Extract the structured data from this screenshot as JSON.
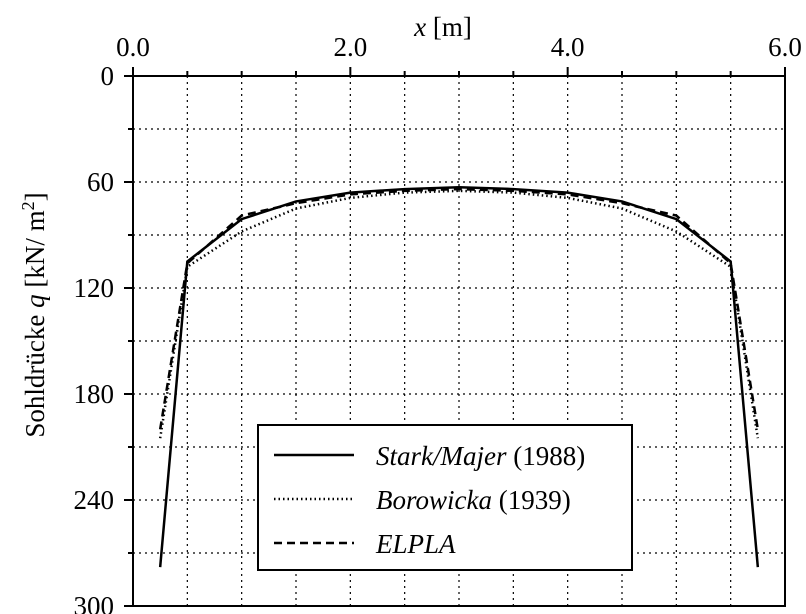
{
  "chart_data": {
    "type": "line",
    "xlabel": {
      "var": "x",
      "unit": " [m]"
    },
    "ylabel": {
      "prefix": "Sohldrücke ",
      "var": "q",
      "unit": " [kN/ m",
      "sup": "2",
      "close": "]"
    },
    "x_ticks": [
      "0.0",
      "2.0",
      "4.0",
      "6.0"
    ],
    "y_ticks": [
      "0",
      "60",
      "120",
      "180",
      "240",
      "300"
    ],
    "xlim": [
      0,
      6
    ],
    "ylim": [
      0,
      300
    ],
    "y_inverted": true,
    "x_axis_position": "top",
    "grid": true,
    "legend_position": "bottom-center",
    "series": [
      {
        "name_italic": "Stark/Majer",
        "name_rest": " (1988)",
        "style": "solid",
        "x": [
          0.25,
          0.5,
          1.0,
          1.5,
          2.0,
          2.5,
          3.0,
          3.5,
          4.0,
          4.5,
          5.0,
          5.5,
          5.75
        ],
        "y": [
          278,
          105,
          81,
          71,
          66,
          64,
          63,
          64,
          66,
          71,
          81,
          105,
          278
        ]
      },
      {
        "name_italic": "Borowicka",
        "name_rest": " (1939)",
        "style": "dotted",
        "x": [
          0.25,
          0.5,
          1.0,
          1.5,
          2.0,
          2.5,
          3.0,
          3.5,
          4.0,
          4.5,
          5.0,
          5.5,
          5.75
        ],
        "y": [
          205,
          108,
          88,
          75,
          69,
          66,
          65,
          66,
          69,
          75,
          88,
          108,
          205
        ]
      },
      {
        "name_italic": "ELPLA",
        "name_rest": "",
        "style": "dashed",
        "x": [
          0.25,
          0.5,
          1.0,
          1.5,
          2.0,
          2.5,
          3.0,
          3.5,
          4.0,
          4.5,
          5.0,
          5.5,
          5.75
        ],
        "y": [
          200,
          106,
          79,
          72,
          67,
          65,
          64,
          65,
          67,
          72,
          79,
          106,
          200
        ]
      }
    ]
  }
}
